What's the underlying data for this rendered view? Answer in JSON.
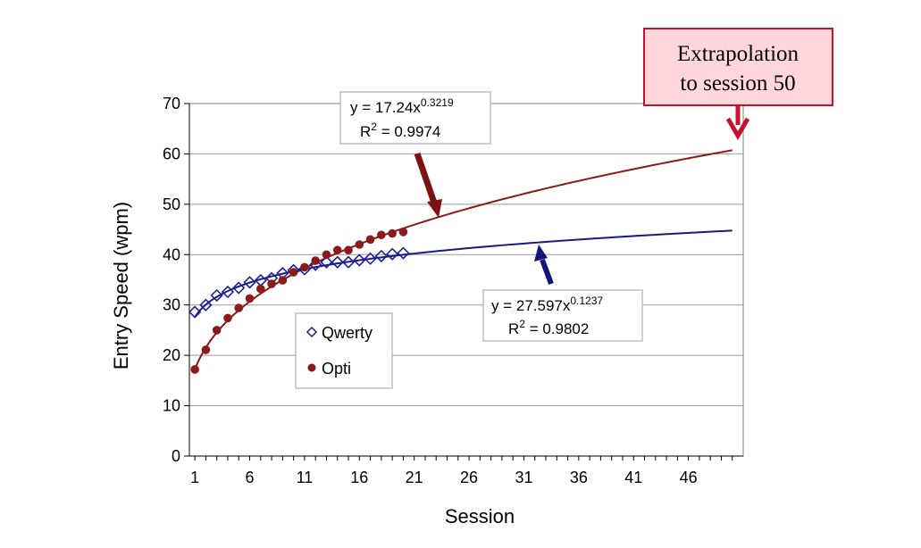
{
  "chart_data": {
    "type": "scatter",
    "title": "",
    "xlabel": "Session",
    "ylabel": "Entry Speed (wpm)",
    "xlim": [
      0.5,
      51
    ],
    "ylim": [
      0,
      70
    ],
    "xticks": [
      1,
      6,
      11,
      16,
      21,
      26,
      31,
      36,
      41,
      46
    ],
    "xtick_labels": [
      "1",
      "6",
      "11",
      "16",
      "21",
      "26",
      "31",
      "36",
      "41",
      "46"
    ],
    "yticks": [
      0,
      10,
      20,
      30,
      40,
      50,
      60,
      70
    ],
    "ytick_labels": [
      "0",
      "10",
      "20",
      "30",
      "40",
      "50",
      "60",
      "70"
    ],
    "grid": "horizontal",
    "legend_position": "center-left",
    "series": [
      {
        "name": "Qwerty",
        "marker": "diamond-open",
        "color": "#1f1f99",
        "x": [
          1,
          2,
          3,
          4,
          5,
          6,
          7,
          8,
          9,
          10,
          11,
          12,
          13,
          14,
          15,
          16,
          17,
          18,
          19,
          20
        ],
        "y": [
          28.6,
          30.0,
          31.9,
          32.6,
          33.4,
          34.5,
          34.9,
          35.3,
          36.3,
          36.9,
          37.1,
          38.0,
          38.5,
          38.5,
          38.5,
          38.9,
          39.2,
          39.7,
          40.1,
          40.3
        ]
      },
      {
        "name": "Opti",
        "marker": "circle-filled",
        "color": "#8b1a1a",
        "x": [
          1,
          2,
          3,
          4,
          5,
          6,
          7,
          8,
          9,
          10,
          11,
          12,
          13,
          14,
          15,
          16,
          17,
          18,
          19,
          20
        ],
        "y": [
          17.2,
          21.1,
          25.0,
          27.4,
          29.4,
          31.3,
          33.2,
          34.2,
          34.9,
          36.5,
          37.5,
          38.8,
          40.0,
          40.9,
          40.9,
          42.0,
          43.0,
          43.9,
          44.2,
          44.5
        ]
      }
    ],
    "trendlines": [
      {
        "series": "Opti",
        "equation": "y = 17.24x",
        "exponent": "0.3219",
        "r2_label": "R",
        "r2_sup": "2",
        "r2_value": " = 0.9974",
        "a": 17.24,
        "b": 0.3219,
        "x_range": [
          1,
          50
        ],
        "color": "#8b1a1a"
      },
      {
        "series": "Qwerty",
        "equation": "y = 27.597x",
        "exponent": "0.1237",
        "r2_label": "R",
        "r2_sup": "2",
        "r2_value": " = 0.9802",
        "a": 27.597,
        "b": 0.1237,
        "x_range": [
          1,
          50
        ],
        "color": "#1a1a80"
      }
    ],
    "callout": {
      "line1": "Extrapolation",
      "line2": "to session 50",
      "fill": "#ffd6dc",
      "border": "#c8102e"
    },
    "arrow_colors": {
      "opti": "#7a1414",
      "qwerty": "#14147a",
      "callout": "#c8102e"
    }
  }
}
